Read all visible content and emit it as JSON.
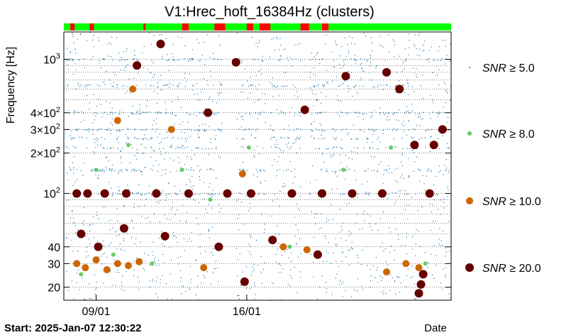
{
  "chart_data": {
    "type": "scatter",
    "title": "V1:Hrec_hoft_16384Hz (clusters)",
    "ylabel": "Frequency [Hz]",
    "xlabel": "Date",
    "start_label": "Start: 2025-Jan-07 12:30:22",
    "y_scale": "log",
    "ylim": [
      16,
      1600
    ],
    "xlim": [
      0,
      18
    ],
    "x_unit": "days since start (axis printed as dates)",
    "x_ticks": [
      {
        "value": 1.5,
        "label": "09/01"
      },
      {
        "value": 8.5,
        "label": "16/01"
      }
    ],
    "y_ticks": [
      {
        "value": 20,
        "label": "20"
      },
      {
        "value": 30,
        "label": "30"
      },
      {
        "value": 40,
        "label": "40"
      },
      {
        "value": 100,
        "label": "10^2"
      },
      {
        "value": 200,
        "label": "2×10^2"
      },
      {
        "value": 300,
        "label": "3×10^2"
      },
      {
        "value": 400,
        "label": "4×10^2"
      },
      {
        "value": 1000,
        "label": "10^3"
      }
    ],
    "grid": true,
    "legend_position": "right",
    "segments_bar": {
      "on_color": "#00ff00",
      "off_color": "#ff0000",
      "off_intervals": [
        [
          0.3,
          0.5
        ],
        [
          1.2,
          1.4
        ],
        [
          3.7,
          3.8
        ],
        [
          5.5,
          5.8
        ],
        [
          7.0,
          7.5
        ],
        [
          8.5,
          8.8
        ],
        [
          9.1,
          9.6
        ],
        [
          11.0,
          11.4
        ],
        [
          12.0,
          12.3
        ]
      ]
    },
    "series": [
      {
        "name": "SNR ≥ 5.0",
        "color": "#1f77b4",
        "marker_size": 1,
        "points": [
          [
            0.5,
            1200
          ],
          [
            2.0,
            300
          ],
          [
            4.0,
            800
          ],
          [
            6.0,
            150
          ],
          [
            9.0,
            500
          ],
          [
            12.0,
            200
          ],
          [
            14.5,
            900
          ],
          [
            16.0,
            350
          ]
        ]
      },
      {
        "name": "SNR ≥ 8.0",
        "color": "#66cc66",
        "marker_size": 3,
        "points": [
          [
            0.8,
            25
          ],
          [
            1.5,
            150
          ],
          [
            2.3,
            35
          ],
          [
            3.0,
            230
          ],
          [
            4.1,
            30
          ],
          [
            5.5,
            150
          ],
          [
            6.8,
            90
          ],
          [
            8.6,
            220
          ],
          [
            10.5,
            40
          ],
          [
            13.0,
            150
          ],
          [
            15.2,
            220
          ],
          [
            16.8,
            30
          ]
        ]
      },
      {
        "name": "SNR ≥ 10.0",
        "color": "#cc6600",
        "marker_size": 5,
        "points": [
          [
            0.6,
            30
          ],
          [
            1.0,
            28
          ],
          [
            1.5,
            32
          ],
          [
            2.0,
            27
          ],
          [
            2.5,
            30
          ],
          [
            3.0,
            29
          ],
          [
            3.5,
            31
          ],
          [
            2.5,
            350
          ],
          [
            3.2,
            600
          ],
          [
            5.0,
            300
          ],
          [
            6.5,
            28
          ],
          [
            8.3,
            140
          ],
          [
            10.2,
            40
          ],
          [
            11.3,
            38
          ],
          [
            15.0,
            26
          ],
          [
            15.9,
            30
          ],
          [
            16.5,
            28
          ]
        ]
      },
      {
        "name": "SNR ≥ 20.0",
        "color": "#660000",
        "marker_size": 6,
        "points": [
          [
            0.6,
            100
          ],
          [
            1.1,
            100
          ],
          [
            1.9,
            100
          ],
          [
            2.9,
            100
          ],
          [
            4.3,
            100
          ],
          [
            5.8,
            100
          ],
          [
            7.6,
            100
          ],
          [
            8.7,
            100
          ],
          [
            10.6,
            100
          ],
          [
            12.0,
            100
          ],
          [
            13.4,
            100
          ],
          [
            14.8,
            100
          ],
          [
            17.0,
            100
          ],
          [
            4.5,
            1300
          ],
          [
            6.7,
            400
          ],
          [
            8.0,
            950
          ],
          [
            11.2,
            420
          ],
          [
            13.1,
            750
          ],
          [
            15.0,
            800
          ],
          [
            15.6,
            600
          ],
          [
            16.3,
            230
          ],
          [
            17.2,
            230
          ],
          [
            17.6,
            300
          ],
          [
            3.4,
            900
          ],
          [
            0.8,
            50
          ],
          [
            1.6,
            40
          ],
          [
            2.8,
            55
          ],
          [
            4.7,
            48
          ],
          [
            7.2,
            40
          ],
          [
            8.4,
            22
          ],
          [
            9.7,
            45
          ],
          [
            11.8,
            35
          ],
          [
            16.5,
            18
          ],
          [
            16.6,
            21
          ],
          [
            16.7,
            25
          ]
        ]
      }
    ]
  }
}
